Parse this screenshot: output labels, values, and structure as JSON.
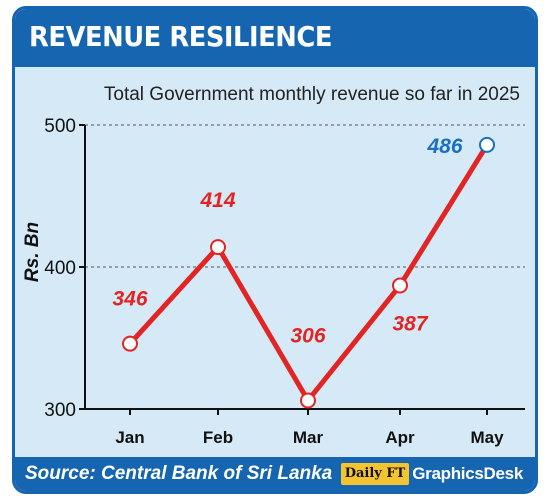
{
  "header": {
    "title": "REVENUE RESILIENCE"
  },
  "footer": {
    "source": "Source: Central Bank of Sri Lanka",
    "logo_badge": "Daily FT",
    "logo_text": "GraphicsDesk"
  },
  "colors": {
    "brand_blue": "#1565b0",
    "panel_bg": "#d6e9f6",
    "line": "#e32424",
    "highlight_label": "#1a6fc0"
  },
  "chart_data": {
    "type": "line",
    "title": "Total Government monthly revenue so far in 2025",
    "xlabel": "",
    "ylabel": "Rs. Bn",
    "categories": [
      "Jan",
      "Feb",
      "Mar",
      "Apr",
      "May"
    ],
    "series": [
      {
        "values": [
          346,
          414,
          306,
          387,
          486
        ]
      }
    ],
    "data_labels": [
      "346",
      "414",
      "306",
      "387",
      "486"
    ],
    "ylim": [
      300,
      500
    ],
    "yticks": [
      300,
      400,
      500
    ],
    "grid": "dashed horizontal at 400 and 500",
    "highlight_last_point": true
  }
}
